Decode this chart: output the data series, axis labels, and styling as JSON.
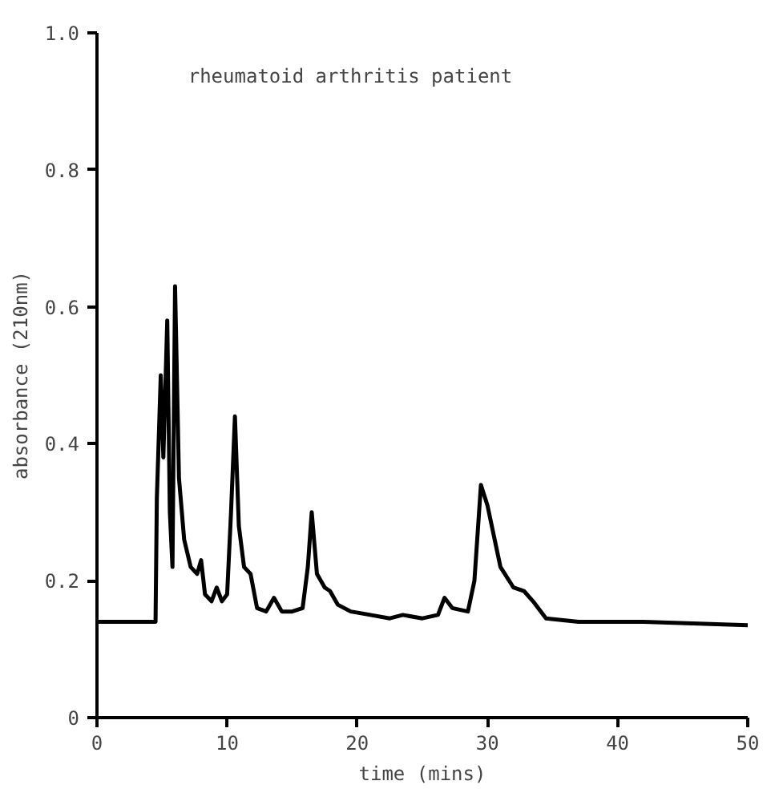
{
  "chart_data": {
    "type": "line",
    "title": "rheumatoid arthritis patient",
    "xlabel": "time (mins)",
    "ylabel": "absorbance (210nm)",
    "xlim": [
      0,
      50
    ],
    "ylim": [
      0,
      1.0
    ],
    "xticks": [
      0,
      10,
      20,
      30,
      40,
      50
    ],
    "yticks": [
      0,
      {
        "value": 0.2,
        "label": "0.2"
      },
      {
        "value": 0.4,
        "label": "0.4"
      },
      {
        "value": 0.6,
        "label": "0.6"
      },
      {
        "value": 0.8,
        "label": "0.8"
      },
      {
        "value": 1.0,
        "label": "1.0"
      }
    ],
    "grid": false,
    "marker": "none",
    "line_style": "solid",
    "series": [
      {
        "color": "#000000",
        "x": [
          0,
          4.5,
          4.6,
          4.9,
          5.1,
          5.4,
          5.6,
          5.8,
          6.0,
          6.3,
          6.7,
          7.2,
          7.7,
          8.0,
          8.3,
          8.8,
          9.2,
          9.6,
          10.0,
          10.3,
          10.6,
          10.9,
          11.3,
          11.8,
          12.3,
          13.0,
          13.6,
          14.2,
          15.0,
          15.8,
          16.2,
          16.5,
          16.9,
          17.5,
          17.9,
          18.5,
          19.5,
          21,
          22.5,
          23.5,
          25,
          26.2,
          26.7,
          27.3,
          28.5,
          29.0,
          29.5,
          30.0,
          31.0,
          32.0,
          32.8,
          33.5,
          34.5,
          37,
          42,
          50
        ],
        "values": [
          0.14,
          0.14,
          0.32,
          0.5,
          0.38,
          0.58,
          0.3,
          0.22,
          0.63,
          0.35,
          0.26,
          0.22,
          0.21,
          0.23,
          0.18,
          0.17,
          0.19,
          0.17,
          0.18,
          0.3,
          0.44,
          0.28,
          0.22,
          0.21,
          0.16,
          0.155,
          0.175,
          0.155,
          0.155,
          0.16,
          0.22,
          0.3,
          0.21,
          0.19,
          0.185,
          0.165,
          0.155,
          0.15,
          0.145,
          0.15,
          0.145,
          0.15,
          0.175,
          0.16,
          0.155,
          0.2,
          0.34,
          0.31,
          0.22,
          0.19,
          0.185,
          0.17,
          0.145,
          0.14,
          0.14,
          0.135
        ]
      }
    ]
  }
}
